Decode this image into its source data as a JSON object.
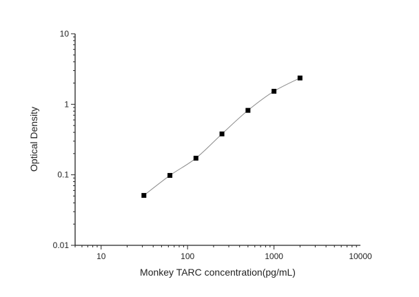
{
  "chart_data": {
    "type": "scatter",
    "title": "",
    "xlabel": "Monkey TARC concentration(pg/mL)",
    "ylabel": "Optical Density",
    "xscale": "log",
    "yscale": "log",
    "xlim": [
      5,
      10000
    ],
    "ylim": [
      0.01,
      10
    ],
    "xticks": [
      10,
      100,
      1000,
      10000
    ],
    "xtick_labels": [
      "10",
      "100",
      "1000",
      "10000"
    ],
    "yticks": [
      0.01,
      0.1,
      1,
      10
    ],
    "ytick_labels": [
      "0.01",
      "0.1",
      "1",
      "10"
    ],
    "grid": false,
    "legend": "none",
    "fit_curve": true,
    "marker_color": "#000000",
    "curve_color": "#8a8a8a",
    "series": [
      {
        "x": [
          31.25,
          62.5,
          125,
          250,
          500,
          1000,
          2000
        ],
        "y": [
          0.051,
          0.098,
          0.172,
          0.38,
          0.82,
          1.53,
          2.36
        ]
      }
    ]
  }
}
